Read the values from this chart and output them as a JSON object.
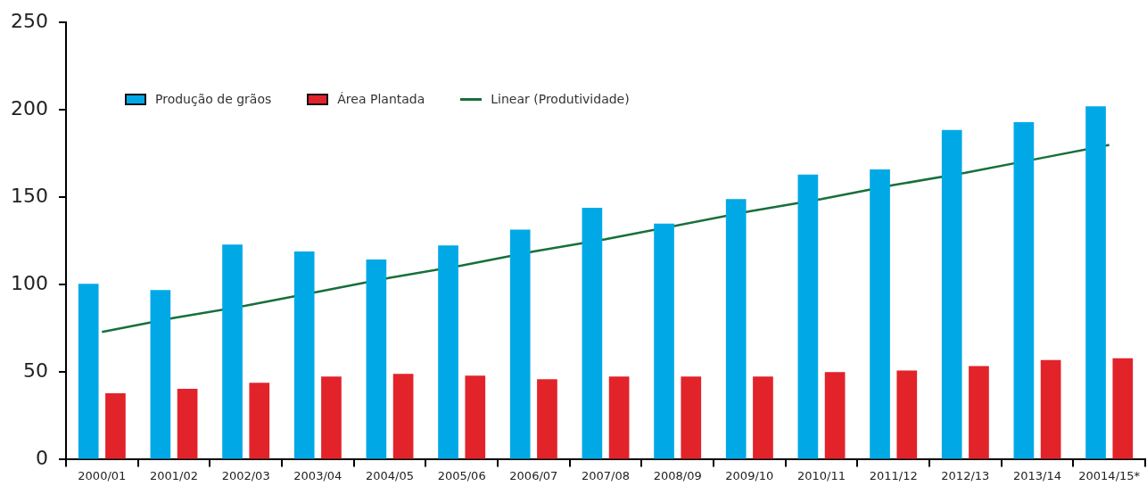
{
  "chart_data": {
    "type": "bar",
    "categories": [
      "2000/01",
      "2001/02",
      "2002/03",
      "2003/04",
      "2004/05",
      "2005/06",
      "2006/07",
      "2007/08",
      "2008/09",
      "2009/10",
      "2010/11",
      "2011/12",
      "2012/13",
      "2013/14",
      "20014/15*"
    ],
    "series": [
      {
        "name": "Produção de grãos",
        "color": "#00a9e6",
        "values": [
          100.5,
          97,
          123,
          119,
          114.5,
          122.5,
          131.5,
          144,
          135,
          149,
          163,
          166,
          188.5,
          193,
          202
        ]
      },
      {
        "name": "Área Plantada",
        "color": "#e2232a",
        "values": [
          38,
          40.5,
          44,
          47.5,
          49,
          48,
          46,
          47.5,
          47.5,
          47.5,
          50,
          51,
          53.5,
          57,
          58
        ]
      },
      {
        "name": "Linear (Produtividade)",
        "type": "line",
        "color": "#17703a",
        "values": [
          73,
          81,
          88,
          96,
          104,
          111,
          119,
          126,
          134,
          142,
          149,
          157,
          164,
          172,
          180
        ]
      }
    ],
    "ylim": [
      0,
      250
    ],
    "yticks": [
      0,
      50,
      100,
      150,
      200,
      250
    ],
    "legend": "top"
  }
}
